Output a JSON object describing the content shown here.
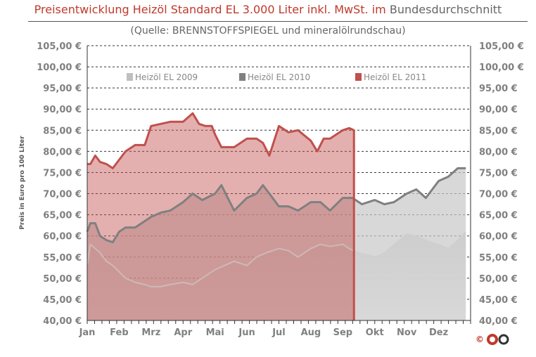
{
  "title": {
    "part1": "Preisentwicklung Heizöl Standard EL 3.000 Liter inkl. MwSt. im",
    "part2": "Bundesdurchschnitt"
  },
  "subtitle": "(Quelle: BRENNSTOFFSPIEGEL  und mineralölrundschau)",
  "copyright": "©",
  "colors": {
    "s2009": "#bfbfbf",
    "s2010": "#808080",
    "s2011": "#c0504d",
    "grid": "#333333"
  },
  "chart_data": {
    "type": "area",
    "title": "Preisentwicklung Heizöl Standard EL 3.000 Liter inkl. MwSt. im Bundesdurchschnitt",
    "subtitle": "(Quelle: BRENNSTOFFSPIEGEL  und mineralölrundschau)",
    "xlabel": "",
    "ylabel": "Preis in Euro pro 100 Liter",
    "ylim": [
      40,
      105
    ],
    "y_ticks": [
      "40,00 €",
      "45,00 €",
      "50,00 €",
      "55,00 €",
      "60,00 €",
      "65,00 €",
      "70,00 €",
      "75,00 €",
      "80,00 €",
      "85,00 €",
      "90,00 €",
      "95,00 €",
      "100,00 €",
      "105,00 €"
    ],
    "categories": [
      "Jan",
      "Feb",
      "Mrz",
      "Apr",
      "Mai",
      "Jun",
      "Jul",
      "Aug",
      "Sep",
      "Okt",
      "Nov",
      "Dez"
    ],
    "grid": true,
    "legend_position": "top",
    "series": [
      {
        "name": "Heizöl EL 2009",
        "x": [
          0,
          0.1,
          0.25,
          0.4,
          0.6,
          0.8,
          1.0,
          1.2,
          1.5,
          1.8,
          2.0,
          2.3,
          2.6,
          3.0,
          3.3,
          3.6,
          4.0,
          4.3,
          4.6,
          5.0,
          5.3,
          5.6,
          6.0,
          6.3,
          6.6,
          7.0,
          7.3,
          7.6,
          8.0,
          8.2,
          8.5,
          8.8,
          9.0,
          9.3,
          9.6,
          10.0,
          10.3,
          10.6,
          11.0,
          11.3,
          11.6,
          11.85
        ],
        "values": [
          53,
          58,
          57,
          56,
          54,
          53,
          51.5,
          50,
          49,
          48.5,
          48,
          48,
          48.5,
          49,
          48.5,
          50,
          52,
          53,
          54,
          53,
          55,
          56,
          57,
          56.5,
          55,
          57,
          58,
          57.5,
          58,
          57,
          56,
          55.5,
          55,
          56,
          58,
          60.5,
          60,
          59,
          58,
          57,
          59,
          61
        ]
      },
      {
        "name": "Heizöl EL 2010",
        "x": [
          0,
          0.1,
          0.25,
          0.4,
          0.6,
          0.8,
          1.0,
          1.2,
          1.5,
          1.8,
          2.0,
          2.3,
          2.6,
          3.0,
          3.3,
          3.6,
          4.0,
          4.2,
          4.4,
          4.6,
          5.0,
          5.3,
          5.5,
          5.7,
          6.0,
          6.3,
          6.6,
          7.0,
          7.3,
          7.6,
          8.0,
          8.3,
          8.6,
          9.0,
          9.3,
          9.6,
          10.0,
          10.3,
          10.6,
          11.0,
          11.3,
          11.6,
          11.85
        ],
        "values": [
          61,
          63,
          63,
          60,
          59,
          58.5,
          61,
          62,
          62,
          63.5,
          64.5,
          65.5,
          66,
          68,
          70,
          68.5,
          70,
          72,
          69,
          66,
          69,
          70,
          72,
          70,
          67,
          67,
          66,
          68,
          68,
          66,
          69,
          69,
          67.5,
          68.5,
          67.5,
          68,
          70,
          71,
          69,
          73,
          74,
          76,
          76
        ]
      },
      {
        "name": "Heizöl EL 2011",
        "x": [
          0,
          0.1,
          0.25,
          0.4,
          0.6,
          0.8,
          1.0,
          1.2,
          1.5,
          1.8,
          2.0,
          2.3,
          2.6,
          3.0,
          3.3,
          3.5,
          3.7,
          3.9,
          4.0,
          4.2,
          4.4,
          4.6,
          5.0,
          5.3,
          5.5,
          5.7,
          6.0,
          6.3,
          6.6,
          7.0,
          7.2,
          7.4,
          7.6,
          8.0,
          8.2,
          8.35
        ],
        "values": [
          77,
          77,
          79,
          77.5,
          77,
          76,
          78,
          80,
          81.5,
          81.5,
          86,
          86.5,
          87,
          87,
          89,
          86.5,
          86,
          86,
          84,
          81,
          81,
          81,
          83,
          83,
          82,
          79,
          86,
          84.5,
          85,
          82.5,
          80,
          83,
          83,
          85,
          85.5,
          85
        ]
      }
    ]
  }
}
